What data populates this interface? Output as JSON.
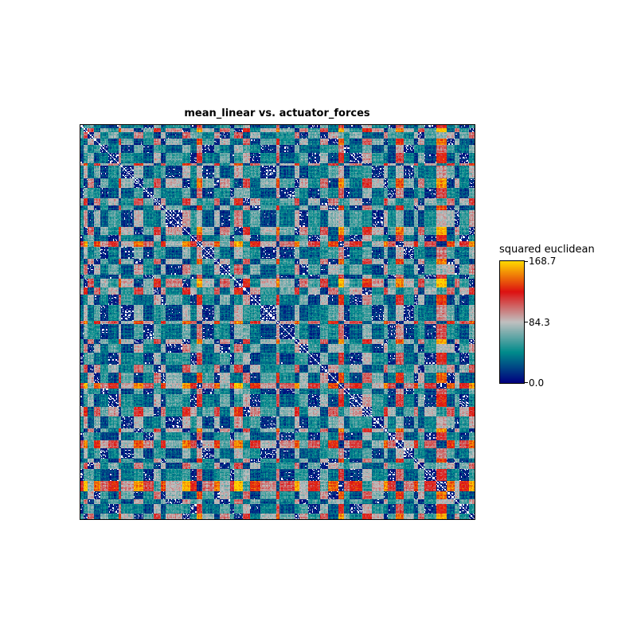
{
  "chart_data": {
    "type": "heatmap",
    "title": "mean_linear vs. actuator_forces",
    "xlabel": "",
    "ylabel": "",
    "matrix_kind": "symmetric pairwise distance matrix",
    "zero_diagonal": true,
    "colorbar": {
      "label": "squared euclidean",
      "vmin": 0.0,
      "vmax": 168.7,
      "ticks": [
        0.0,
        84.3,
        168.7
      ],
      "tick_labels": [
        "0.0",
        "84.3",
        "168.7"
      ],
      "colormap_stops": [
        "#00007f",
        "#008b8b",
        "#c0c0c0",
        "#dd1111",
        "#ffd700"
      ]
    },
    "block_sizes": [
      3,
      4,
      6,
      6,
      8,
      10,
      3,
      12,
      10,
      10,
      7,
      5,
      16,
      8,
      6,
      6,
      12,
      5,
      10,
      4,
      9,
      7,
      10,
      16,
      3,
      15,
      5,
      8,
      12,
      8,
      10,
      6,
      5,
      13,
      9,
      12,
      4,
      8,
      8,
      10,
      4,
      6,
      12,
      10,
      8,
      5,
      9,
      6
    ],
    "block_levels": [
      0.35,
      0.05,
      0.62,
      0.18,
      0.44,
      0.28,
      0.8,
      0.5,
      0.12,
      0.38,
      0.7,
      0.22,
      0.55,
      0.08,
      0.3,
      0.92,
      0.45,
      0.15,
      0.6,
      0.35,
      0.05,
      0.72,
      0.25,
      0.48,
      0.85,
      0.4,
      0.1,
      0.58,
      0.32,
      0.66,
      0.2,
      0.95,
      0.42,
      0.28,
      0.75,
      0.52,
      0.12,
      0.36,
      0.88,
      0.46,
      0.22,
      0.64,
      0.34,
      0.98,
      0.18,
      0.56,
      0.3,
      0.08
    ]
  }
}
